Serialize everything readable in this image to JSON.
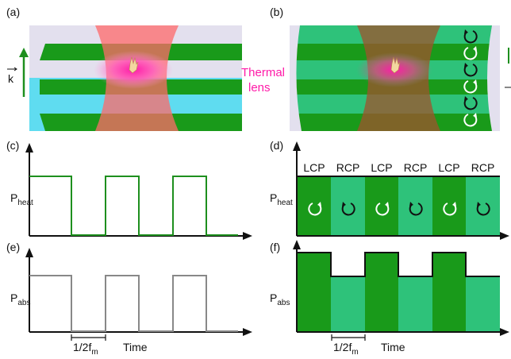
{
  "panels": [
    {
      "label": "(a)"
    },
    {
      "label": "(b)"
    },
    {
      "label": "(c)",
      "ylabel": {
        "main": "P",
        "sub": "heat"
      }
    },
    {
      "label": "(d)",
      "ylabel": {
        "main": "P",
        "sub": "heat"
      },
      "columns": [
        "LCP",
        "RCP",
        "LCP",
        "RCP",
        "LCP",
        "RCP"
      ]
    },
    {
      "label": "(e)",
      "ylabel": {
        "main": "P",
        "sub": "abs"
      },
      "period": {
        "main": "1/2f",
        "sub": "m"
      },
      "xlabel": "Time"
    },
    {
      "label": "(f)",
      "ylabel": {
        "main": "P",
        "sub": "abs"
      },
      "period": {
        "main": "1/2f",
        "sub": "m"
      },
      "xlabel": "Time"
    }
  ],
  "thermal_lens": [
    "Thermal",
    "lens"
  ],
  "wavevector": "k"
}
